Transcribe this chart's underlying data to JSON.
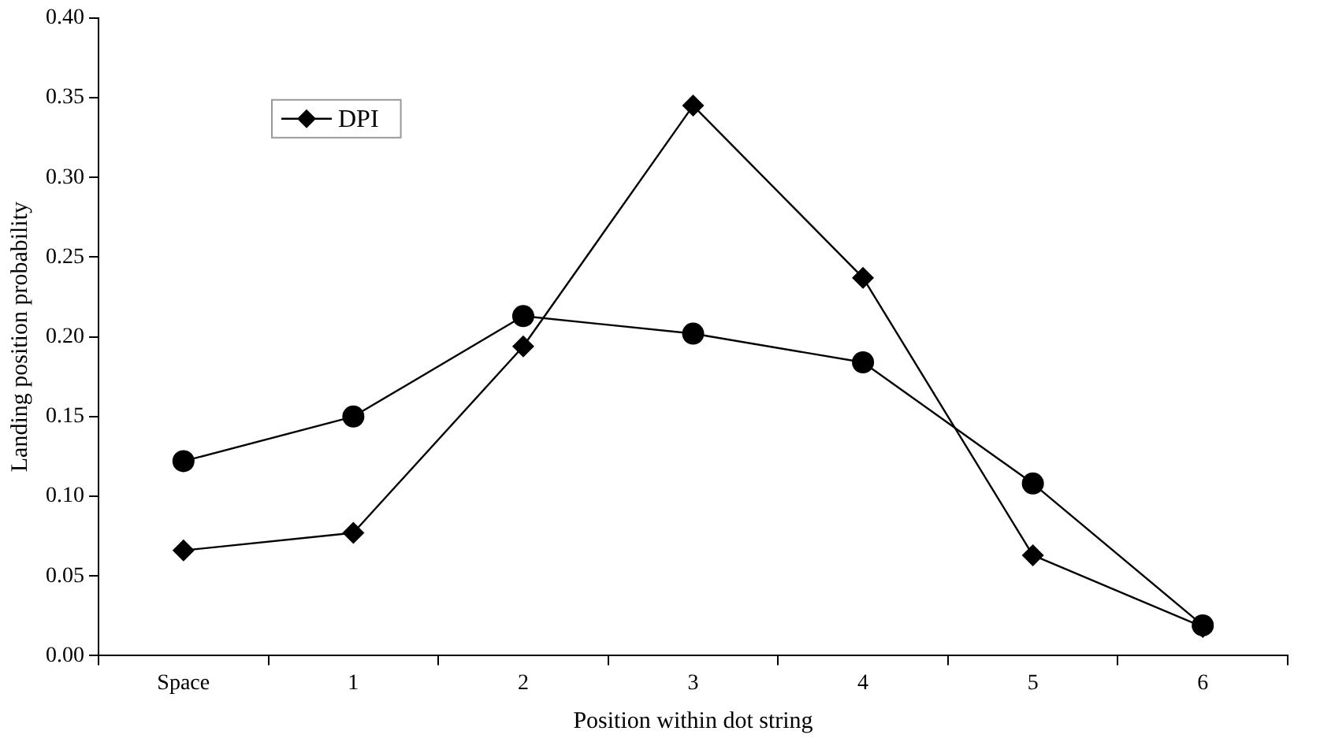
{
  "chart_data": {
    "type": "line",
    "xlabel": "Position within dot string",
    "ylabel": "Landing position probability",
    "categories": [
      "Space",
      "1",
      "2",
      "3",
      "4",
      "5",
      "6"
    ],
    "series": [
      {
        "name": "DPI",
        "color": "#000000",
        "marker": "diamond",
        "values": [
          0.066,
          0.077,
          0.194,
          0.345,
          0.237,
          0.063,
          0.018
        ]
      },
      {
        "color": "#000000",
        "marker": "circle",
        "values": [
          0.122,
          0.15,
          0.213,
          0.202,
          0.184,
          0.108,
          0.019
        ]
      }
    ],
    "ylim": [
      0,
      0.4
    ],
    "yticks": [
      {
        "value": 0,
        "label": "0.00"
      },
      {
        "value": 0.05,
        "label": "0.05"
      },
      {
        "value": 0.1,
        "label": "0.10"
      },
      {
        "value": 0.15,
        "label": "0.15"
      },
      {
        "value": 0.2,
        "label": "0.20"
      },
      {
        "value": 0.25,
        "label": "0.25"
      },
      {
        "value": 0.3,
        "label": "0.30"
      },
      {
        "value": 0.35,
        "label": "0.35"
      },
      {
        "value": 0.4,
        "label": "0.40"
      }
    ],
    "grid": false,
    "legend": "top left",
    "line_style": "solid"
  }
}
